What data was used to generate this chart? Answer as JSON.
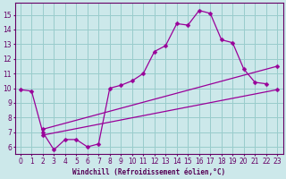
{
  "bg_color": "#cce8ea",
  "line_color": "#990099",
  "grid_color": "#99cccc",
  "xlabel": "Windchill (Refroidissement éolien,°C)",
  "xlim": [
    -0.5,
    23.5
  ],
  "ylim": [
    5.5,
    15.8
  ],
  "xticks": [
    0,
    1,
    2,
    3,
    4,
    5,
    6,
    7,
    8,
    9,
    10,
    11,
    12,
    13,
    14,
    15,
    16,
    17,
    18,
    19,
    20,
    21,
    22,
    23
  ],
  "yticks": [
    6,
    7,
    8,
    9,
    10,
    11,
    12,
    13,
    14,
    15
  ],
  "line_main": {
    "x": [
      0,
      1,
      2,
      3,
      4,
      5,
      6,
      7,
      8,
      9,
      10,
      11,
      12,
      13,
      14,
      15,
      16,
      17,
      18,
      19,
      20,
      21,
      22
    ],
    "y": [
      9.9,
      9.8,
      7.0,
      5.8,
      6.5,
      6.5,
      6.0,
      6.2,
      10.0,
      10.2,
      10.5,
      11.0,
      12.5,
      12.9,
      14.4,
      14.3,
      15.3,
      15.1,
      13.3,
      13.1,
      11.3,
      10.4,
      10.3
    ]
  },
  "line_lower": {
    "x": [
      2,
      23
    ],
    "y": [
      6.8,
      9.9
    ]
  },
  "line_upper": {
    "x": [
      2,
      23
    ],
    "y": [
      7.2,
      11.5
    ]
  }
}
